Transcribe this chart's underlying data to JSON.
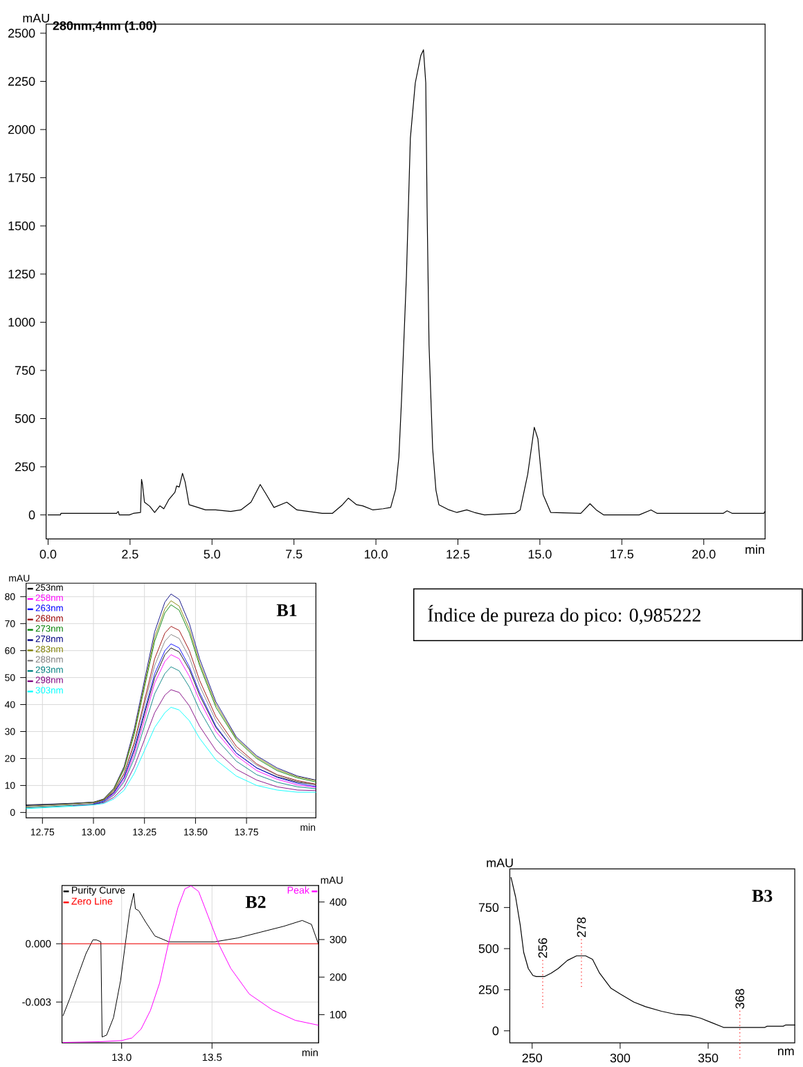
{
  "chart_data": [
    {
      "type": "line",
      "title": "280nm,4nm (1.00)",
      "xlabel": "min",
      "ylabel": "mAU",
      "color": "#000000",
      "marker": "none",
      "xlim": [
        -0.06,
        21.87
      ],
      "ylim": [
        -125,
        2547
      ],
      "xticks": [
        {
          "value": 0,
          "label": "0.0"
        },
        2.5,
        {
          "value": 5,
          "label": "5.0"
        },
        7.5,
        {
          "value": 10,
          "label": "10.0"
        },
        12.5,
        {
          "value": 15,
          "label": "15.0"
        },
        17.5,
        {
          "value": 20,
          "label": "20.0"
        }
      ],
      "yticks": [
        0,
        250,
        500,
        750,
        1000,
        1250,
        1500,
        1750,
        2000,
        2250,
        2500
      ],
      "x": [
        0.0,
        0.38,
        0.39,
        2.09,
        2.14,
        2.17,
        2.48,
        2.6,
        2.82,
        2.85,
        2.88,
        2.94,
        3.1,
        3.25,
        3.41,
        3.53,
        3.68,
        3.87,
        3.92,
        4.0,
        4.1,
        4.18,
        4.3,
        4.57,
        4.8,
        5.11,
        5.57,
        5.88,
        6.19,
        6.47,
        6.66,
        6.89,
        7.28,
        7.59,
        8.36,
        8.67,
        8.98,
        9.16,
        9.41,
        9.6,
        9.91,
        10.22,
        10.45,
        10.6,
        10.7,
        10.78,
        10.93,
        11.05,
        11.2,
        11.37,
        11.45,
        11.52,
        11.56,
        11.62,
        11.73,
        11.83,
        11.92,
        12.23,
        12.46,
        12.77,
        13.0,
        13.31,
        14.24,
        14.4,
        14.63,
        14.83,
        14.94,
        15.1,
        15.33,
        16.25,
        16.53,
        16.72,
        16.95,
        18.03,
        18.39,
        18.58,
        20.59,
        20.71,
        20.87,
        21.83,
        21.87
      ],
      "values": [
        0,
        0,
        8,
        8,
        18,
        0,
        0,
        8,
        13,
        184,
        158,
        66,
        45,
        13,
        47,
        32,
        79,
        118,
        150,
        145,
        216,
        171,
        53,
        39,
        26,
        26,
        18,
        26,
        66,
        158,
        105,
        39,
        66,
        26,
        8,
        8,
        53,
        87,
        53,
        47,
        26,
        32,
        39,
        132,
        300,
        595,
        1239,
        1956,
        2242,
        2385,
        2414,
        2242,
        1597,
        881,
        344,
        129,
        53,
        26,
        13,
        26,
        13,
        0,
        8,
        26,
        211,
        455,
        395,
        105,
        13,
        8,
        58,
        26,
        0,
        0,
        26,
        8,
        8,
        21,
        8,
        8,
        18
      ]
    },
    {
      "type": "line",
      "xlabel": "min",
      "ylabel": "mAU",
      "annotations": [
        "B1"
      ],
      "grid": true,
      "legend": "top left",
      "marker": "none",
      "xlim": [
        12.67,
        14.09
      ],
      "ylim": [
        -2,
        85
      ],
      "xticks": [
        12.75,
        {
          "value": 13,
          "label": "13.00"
        },
        13.25,
        {
          "value": 13.5,
          "label": "13.50"
        },
        13.75
      ],
      "yticks": [
        0,
        10,
        20,
        30,
        40,
        50,
        60,
        70,
        80
      ],
      "x": [
        12.67,
        12.8,
        12.9,
        13.0,
        13.05,
        13.1,
        13.15,
        13.2,
        13.25,
        13.3,
        13.35,
        13.38,
        13.42,
        13.47,
        13.52,
        13.6,
        13.7,
        13.8,
        13.9,
        14.0,
        14.09
      ],
      "series": [
        {
          "name": "253nm",
          "color": "#000000",
          "values": [
            2.8,
            3.1,
            3.4,
            3.8,
            4.6,
            7.4,
            13,
            23,
            36.5,
            50,
            58.5,
            61,
            59.5,
            53,
            43.5,
            31.5,
            22,
            16.5,
            13.2,
            11.2,
            10.3
          ]
        },
        {
          "name": "258nm",
          "color": "#ff00ff",
          "values": [
            null,
            null,
            null,
            3.1,
            4,
            6.8,
            12,
            21.5,
            34.5,
            48,
            56,
            58.5,
            57,
            50.5,
            41.5,
            30,
            21,
            15.5,
            12.3,
            10.2,
            9.3
          ]
        },
        {
          "name": "263nm",
          "color": "#0000ff",
          "values": [
            null,
            null,
            null,
            3.2,
            4.2,
            7.2,
            13,
            23.5,
            37.5,
            51.5,
            60,
            62.5,
            61,
            54,
            44.5,
            32,
            22,
            16.5,
            13,
            10.8,
            9.6
          ]
        },
        {
          "name": "268nm",
          "color": "#990000",
          "values": [
            null,
            null,
            null,
            3.5,
            4.6,
            8,
            14.5,
            26,
            41.5,
            57,
            66.5,
            69,
            67.5,
            60,
            49,
            35.5,
            24.5,
            18,
            14,
            11.8,
            10.5
          ]
        },
        {
          "name": "273nm",
          "color": "#008000",
          "values": [
            null,
            null,
            null,
            3.6,
            4.8,
            8.5,
            16,
            29,
            46.5,
            63.5,
            74,
            77,
            75,
            66.5,
            54.5,
            39,
            27,
            20,
            15.5,
            12.8,
            11.3
          ]
        },
        {
          "name": "278nm",
          "color": "#000080",
          "values": [
            2.5,
            3,
            3.3,
            3.8,
            5,
            9,
            17,
            31,
            49,
            67,
            78,
            81,
            79,
            70,
            57,
            41,
            28,
            21,
            16.5,
            13.5,
            12
          ]
        },
        {
          "name": "283nm",
          "color": "#808000",
          "values": [
            2.3,
            2.8,
            3.2,
            3.7,
            4.9,
            8.8,
            16.5,
            30,
            47.5,
            65,
            75.5,
            78.5,
            76.5,
            68,
            55.5,
            40,
            27.5,
            20.5,
            16,
            13.2,
            11.8
          ]
        },
        {
          "name": "288nm",
          "color": "#808080",
          "values": [
            2,
            2.5,
            2.9,
            3.4,
            4.5,
            7.7,
            14,
            25,
            40,
            54.5,
            63.5,
            66,
            64.5,
            57.5,
            47,
            34,
            23.5,
            17.5,
            13.8,
            11.5,
            10.3
          ]
        },
        {
          "name": "293nm",
          "color": "#008080",
          "values": [
            1.7,
            2.2,
            2.6,
            3,
            3.9,
            6.4,
            11.3,
            20,
            32,
            44,
            51.5,
            54,
            52.5,
            46.5,
            38,
            27.5,
            19,
            14,
            11.2,
            9.5,
            8.8
          ]
        },
        {
          "name": "298nm",
          "color": "#800080",
          "values": [
            null,
            null,
            2.5,
            2.9,
            3.6,
            5.6,
            9.5,
            17,
            27,
            37,
            43.5,
            45.5,
            44.5,
            39.5,
            32,
            23,
            16,
            12,
            9.5,
            8.3,
            8.1
          ]
        },
        {
          "name": "303nm",
          "color": "#00ffff",
          "values": [
            1.4,
            1.9,
            2.3,
            2.8,
            3.3,
            5,
            8.2,
            14.5,
            23,
            31.5,
            37,
            39,
            38,
            34,
            27.5,
            19.5,
            13.5,
            10,
            8.3,
            7.5,
            7.5
          ]
        }
      ]
    },
    {
      "type": "other",
      "title": "Índice de pureza do pico: 0,985222"
    },
    {
      "type": "line",
      "xlabel": "min",
      "y2label": "mAU",
      "annotations": [
        "B2"
      ],
      "grid": true,
      "legend": "top left",
      "marker": "none",
      "xlim": [
        12.67,
        14.09
      ],
      "ylim": [
        -0.0051,
        0.003
      ],
      "y2lim": [
        25,
        444
      ],
      "xticks": [
        {
          "value": 13,
          "label": "13.0"
        },
        {
          "value": 13.5,
          "label": "13.5"
        }
      ],
      "yticks": [
        {
          "value": -0.003,
          "label": "-0.003"
        },
        {
          "value": 0,
          "label": "0.000"
        }
      ],
      "y2ticks": [
        100,
        200,
        300,
        400
      ],
      "series": [
        {
          "name": "Purity Curve",
          "color": "#000000",
          "x": [
            12.676,
            12.714,
            12.752,
            12.803,
            12.841,
            12.86,
            12.885,
            12.892,
            12.917,
            12.955,
            12.994,
            13.019,
            13.045,
            13.067,
            13.076,
            13.095,
            13.134,
            13.184,
            13.261,
            13.388,
            13.515,
            13.643,
            13.77,
            13.897,
            13.999,
            14.05,
            14.088
          ],
          "values": [
            -0.0037,
            -0.0028,
            -0.0018,
            -0.0005,
            0.0002,
            0.0002,
            0.0001,
            -0.0048,
            -0.0047,
            -0.0038,
            -0.0019,
            -0.0001,
            0.0017,
            0.0026,
            0.0018,
            0.0017,
            0.0011,
            0.0004,
            0.0001,
            0.0001,
            0.0001,
            0.0003,
            0.0006,
            0.0009,
            0.0012,
            0.001,
            0.0
          ]
        },
        {
          "name": "Zero Line",
          "color": "#ff0000",
          "x": [
            12.67,
            14.09
          ],
          "values": [
            0,
            0
          ]
        },
        {
          "name": "Peak",
          "color": "#ff00ff",
          "axis": "y2",
          "x": [
            12.676,
            12.879,
            13.0,
            13.057,
            13.108,
            13.159,
            13.21,
            13.261,
            13.312,
            13.35,
            13.384,
            13.426,
            13.477,
            13.541,
            13.604,
            13.706,
            13.833,
            13.96,
            14.088
          ],
          "values": [
            26,
            28,
            31,
            38,
            62,
            111,
            184,
            294,
            386,
            435,
            443,
            428,
            364,
            284,
            223,
            155,
            113,
            85,
            72
          ]
        }
      ]
    },
    {
      "type": "line",
      "xlabel": "nm",
      "ylabel": "mAU",
      "color": "#000000",
      "marker": "none",
      "annotations": [
        "B3",
        {
          "text": "256",
          "x": 256,
          "y": 330
        },
        {
          "text": "278",
          "x": 278,
          "y": 456
        },
        {
          "text": "368",
          "x": 368,
          "y": 21
        }
      ],
      "xlim": [
        237.3,
        399.2
      ],
      "ylim": [
        -73,
        985
      ],
      "xticks": [
        250,
        300,
        350
      ],
      "yticks": [
        0,
        250,
        500,
        750
      ],
      "x": [
        238,
        240.6,
        243.2,
        245.2,
        247.8,
        250.4,
        252.3,
        256.9,
        260.8,
        264.8,
        270,
        275.2,
        280.4,
        284.3,
        288.3,
        294.8,
        300,
        307.8,
        314.4,
        323.5,
        331.3,
        339.2,
        345.7,
        352.2,
        358.7,
        369.2,
        382.2,
        383.5,
        392.6,
        393.9,
        399.2
      ],
      "values": [
        933,
        814,
        645,
        477,
        379,
        337,
        330,
        330,
        351,
        379,
        428,
        456,
        456,
        435,
        351,
        259,
        224,
        175,
        147,
        119,
        101,
        94,
        77,
        49,
        21,
        21,
        21,
        28,
        28,
        35,
        35
      ]
    }
  ]
}
